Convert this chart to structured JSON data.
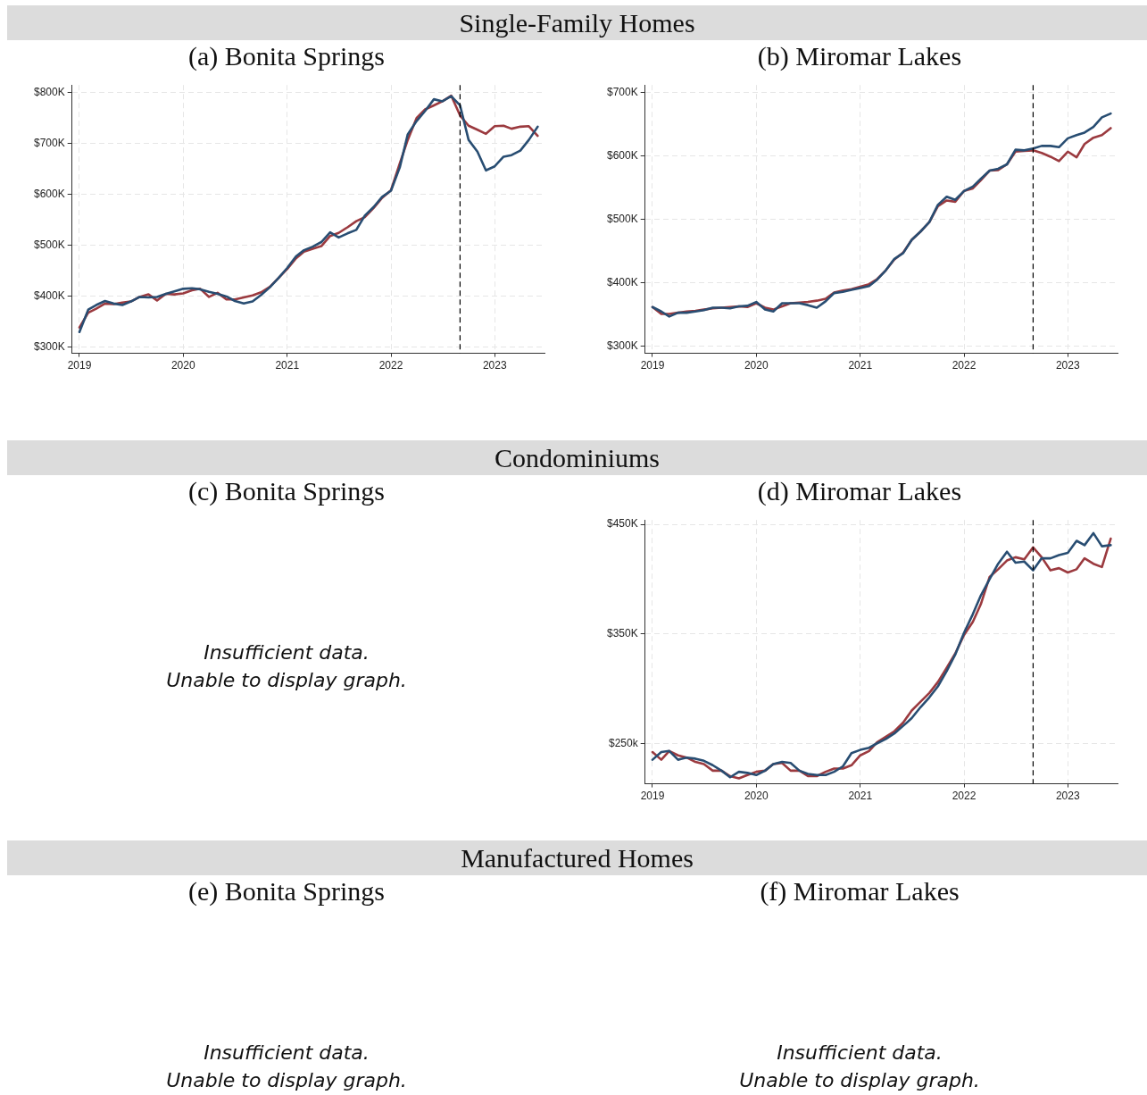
{
  "chart_data": [
    {
      "type": "line",
      "title": "Single-Family Homes",
      "subtitle": "(a) Bonita Springs",
      "x": [
        "2019-01",
        "2019-02",
        "2019-03",
        "2019-04",
        "2019-05",
        "2019-06",
        "2019-07",
        "2019-08",
        "2019-09",
        "2019-10",
        "2019-11",
        "2019-12",
        "2020-01",
        "2020-02",
        "2020-03",
        "2020-04",
        "2020-05",
        "2020-06",
        "2020-07",
        "2020-08",
        "2020-09",
        "2020-10",
        "2020-11",
        "2020-12",
        "2021-01",
        "2021-02",
        "2021-03",
        "2021-04",
        "2021-05",
        "2021-06",
        "2021-07",
        "2021-08",
        "2021-09",
        "2021-10",
        "2021-11",
        "2021-12",
        "2022-01",
        "2022-02",
        "2022-03",
        "2022-04",
        "2022-05",
        "2022-06",
        "2022-07",
        "2022-08",
        "2022-09",
        "2022-10",
        "2022-11",
        "2022-12",
        "2023-01",
        "2023-02",
        "2023-03",
        "2023-04",
        "2023-05",
        "2023-06"
      ],
      "series": [
        {
          "color": "#284d72",
          "values": [
            329,
            373,
            382,
            390,
            385,
            382,
            389,
            398,
            397,
            398,
            404,
            409,
            414,
            415,
            413,
            408,
            404,
            399,
            390,
            385,
            389,
            402,
            417,
            435,
            455,
            478,
            490,
            497,
            506,
            525,
            515,
            523,
            530,
            558,
            575,
            595,
            607,
            653,
            718,
            744,
            764,
            787,
            783,
            793,
            775,
            707,
            684,
            647,
            655,
            674,
            677,
            686,
            707,
            733
          ]
        },
        {
          "color": "#9b3a3f",
          "values": [
            338,
            367,
            375,
            385,
            384,
            387,
            389,
            398,
            403,
            391,
            404,
            403,
            405,
            411,
            414,
            398,
            406,
            393,
            393,
            397,
            401,
            407,
            418,
            435,
            453,
            474,
            487,
            493,
            498,
            518,
            524,
            535,
            547,
            555,
            573,
            593,
            608,
            661,
            707,
            750,
            767,
            775,
            783,
            794,
            755,
            735,
            727,
            719,
            734,
            735,
            729,
            733,
            734,
            715
          ]
        }
      ],
      "xlim": [
        "2018-12-06",
        "2023-06-25"
      ],
      "xticks": [
        "2019",
        "2020",
        "2021",
        "2022",
        "2023"
      ],
      "ylim": [
        287,
        815
      ],
      "yticks": [
        {
          "value": 300,
          "label": "$300K"
        },
        {
          "value": 400,
          "label": "$400K"
        },
        {
          "value": 500,
          "label": "$500K"
        },
        {
          "value": 600,
          "label": "$600K"
        },
        {
          "value": 700,
          "label": "$700K"
        },
        {
          "value": 800,
          "label": "$800K"
        }
      ],
      "ref_lines": [
        {
          "axis": "x",
          "value": "2022-09",
          "color": "#000000",
          "line_style": "dashed"
        }
      ],
      "grid": true,
      "legend": false
    },
    {
      "type": "line",
      "subtitle": "(b) Miromar Lakes",
      "x": [
        "2019-01",
        "2019-02",
        "2019-03",
        "2019-04",
        "2019-05",
        "2019-06",
        "2019-07",
        "2019-08",
        "2019-09",
        "2019-10",
        "2019-11",
        "2019-12",
        "2020-01",
        "2020-02",
        "2020-03",
        "2020-04",
        "2020-05",
        "2020-06",
        "2020-07",
        "2020-08",
        "2020-09",
        "2020-10",
        "2020-11",
        "2020-12",
        "2021-01",
        "2021-02",
        "2021-03",
        "2021-04",
        "2021-05",
        "2021-06",
        "2021-07",
        "2021-08",
        "2021-09",
        "2021-10",
        "2021-11",
        "2021-12",
        "2022-01",
        "2022-02",
        "2022-03",
        "2022-04",
        "2022-05",
        "2022-06",
        "2022-07",
        "2022-08",
        "2022-09",
        "2022-10",
        "2022-11",
        "2022-12",
        "2023-01",
        "2023-02",
        "2023-03",
        "2023-04",
        "2023-05",
        "2023-06"
      ],
      "series": [
        {
          "color": "#284d72",
          "values": [
            362,
            355,
            347,
            353,
            353,
            355,
            357,
            361,
            361,
            360,
            363,
            364,
            370,
            358,
            355,
            368,
            368,
            368,
            365,
            361,
            371,
            384,
            386,
            389,
            392,
            395,
            405,
            420,
            438,
            447,
            468,
            481,
            496,
            523,
            536,
            531,
            545,
            552,
            564,
            577,
            580,
            587,
            610,
            609,
            612,
            616,
            616,
            614,
            628,
            633,
            637,
            646,
            661,
            667
          ]
        },
        {
          "color": "#9b3a3f",
          "values": [
            362,
            351,
            351,
            353,
            355,
            356,
            358,
            360,
            361,
            362,
            363,
            362,
            368,
            361,
            358,
            363,
            368,
            369,
            370,
            372,
            375,
            385,
            388,
            390,
            394,
            398,
            406,
            420,
            437,
            448,
            468,
            481,
            496,
            521,
            530,
            528,
            545,
            549,
            562,
            577,
            578,
            587,
            607,
            608,
            609,
            605,
            599,
            592,
            607,
            598,
            619,
            629,
            633,
            644
          ]
        }
      ],
      "xlim": [
        "2018-12-06",
        "2023-06-25"
      ],
      "xticks": [
        "2019",
        "2020",
        "2021",
        "2022",
        "2023"
      ],
      "ylim": [
        289,
        712
      ],
      "yticks": [
        {
          "value": 300,
          "label": "$300K"
        },
        {
          "value": 400,
          "label": "$400K"
        },
        {
          "value": 500,
          "label": "$500K"
        },
        {
          "value": 600,
          "label": "$600K"
        },
        {
          "value": 700,
          "label": "$700K"
        }
      ],
      "ref_lines": [
        {
          "axis": "x",
          "value": "2022-09",
          "color": "#000000",
          "line_style": "dashed"
        }
      ],
      "grid": true,
      "legend": false
    },
    {
      "type": "other",
      "title": "Condominiums",
      "subtitle": "(c) Bonita Springs",
      "annotations": [
        "Insufficient data.",
        "Unable to display graph."
      ]
    },
    {
      "type": "line",
      "subtitle": "(d) Miromar Lakes",
      "x": [
        "2019-01",
        "2019-02",
        "2019-03",
        "2019-04",
        "2019-05",
        "2019-06",
        "2019-07",
        "2019-08",
        "2019-09",
        "2019-10",
        "2019-11",
        "2019-12",
        "2020-01",
        "2020-02",
        "2020-03",
        "2020-04",
        "2020-05",
        "2020-06",
        "2020-07",
        "2020-08",
        "2020-09",
        "2020-10",
        "2020-11",
        "2020-12",
        "2021-01",
        "2021-02",
        "2021-03",
        "2021-04",
        "2021-05",
        "2021-06",
        "2021-07",
        "2021-08",
        "2021-09",
        "2021-10",
        "2021-11",
        "2021-12",
        "2022-01",
        "2022-02",
        "2022-03",
        "2022-04",
        "2022-05",
        "2022-06",
        "2022-07",
        "2022-08",
        "2022-09",
        "2022-10",
        "2022-11",
        "2022-12",
        "2023-01",
        "2023-02",
        "2023-03",
        "2023-04",
        "2023-05",
        "2023-06"
      ],
      "series": [
        {
          "color": "#284d72",
          "values": [
            235,
            242,
            243,
            235,
            237,
            236,
            234,
            230,
            225,
            219,
            224,
            223,
            221,
            225,
            231,
            233,
            232,
            225,
            222,
            221,
            221,
            224,
            229,
            241,
            244,
            246,
            250,
            254,
            259,
            266,
            273,
            283,
            292,
            302,
            316,
            331,
            351,
            368,
            385,
            400,
            414,
            425,
            415,
            416,
            408,
            419,
            419,
            422,
            424,
            435,
            431,
            442,
            430,
            431
          ]
        },
        {
          "color": "#9b3a3f",
          "values": [
            242,
            235,
            243,
            239,
            237,
            233,
            231,
            225,
            225,
            220,
            218,
            221,
            224,
            225,
            231,
            232,
            225,
            225,
            220,
            220,
            224,
            227,
            227,
            230,
            239,
            243,
            251,
            256,
            261,
            269,
            280,
            288,
            296,
            306,
            319,
            332,
            349,
            361,
            377,
            402,
            409,
            417,
            420,
            418,
            429,
            420,
            408,
            410,
            406,
            409,
            419,
            414,
            411,
            437
          ]
        }
      ],
      "xlim": [
        "2018-12-06",
        "2023-06-25"
      ],
      "xticks": [
        "2019",
        "2020",
        "2021",
        "2022",
        "2023"
      ],
      "ylim": [
        213,
        454
      ],
      "yticks": [
        {
          "value": 250,
          "label": "$250k"
        },
        {
          "value": 350,
          "label": "$350K"
        },
        {
          "value": 450,
          "label": "$450K"
        }
      ],
      "ref_lines": [
        {
          "axis": "x",
          "value": "2022-09",
          "color": "#000000",
          "line_style": "dashed"
        }
      ],
      "grid": true,
      "legend": false
    },
    {
      "type": "other",
      "title": "Manufactured Homes",
      "subtitle": "(e) Bonita Springs",
      "annotations": [
        "Insufficient data.",
        "Unable to display graph."
      ]
    },
    {
      "type": "other",
      "subtitle": "(f) Miromar Lakes",
      "annotations": [
        "Insufficient data.",
        "Unable to display graph."
      ]
    }
  ]
}
